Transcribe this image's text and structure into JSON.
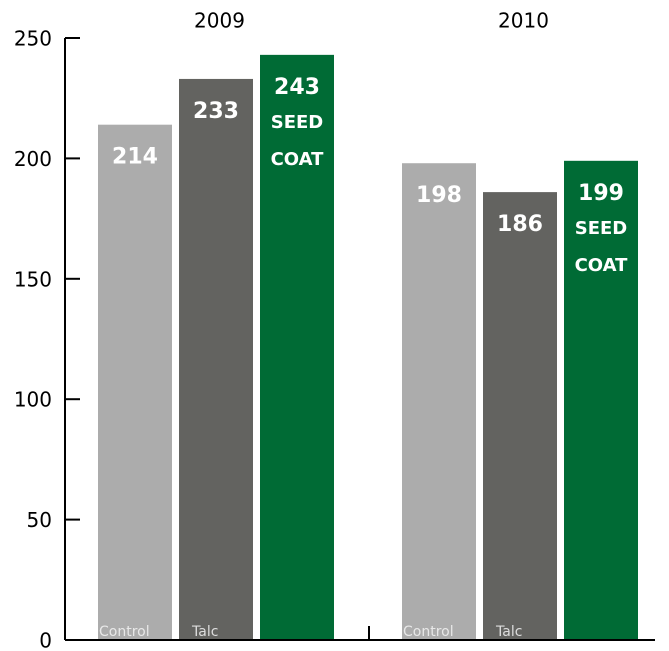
{
  "chart_data": {
    "type": "bar",
    "categories": [
      "2009",
      "2010"
    ],
    "series": [
      {
        "name": "Control",
        "color": "#acacac",
        "values": [
          214,
          198
        ]
      },
      {
        "name": "Talc",
        "color": "#636360",
        "values": [
          233,
          186
        ]
      },
      {
        "name": "SEED COAT",
        "color": "#006b35",
        "values": [
          243,
          199
        ]
      }
    ],
    "ylim": [
      0,
      250
    ],
    "yticks": [
      0,
      50,
      100,
      150,
      200,
      250
    ]
  }
}
